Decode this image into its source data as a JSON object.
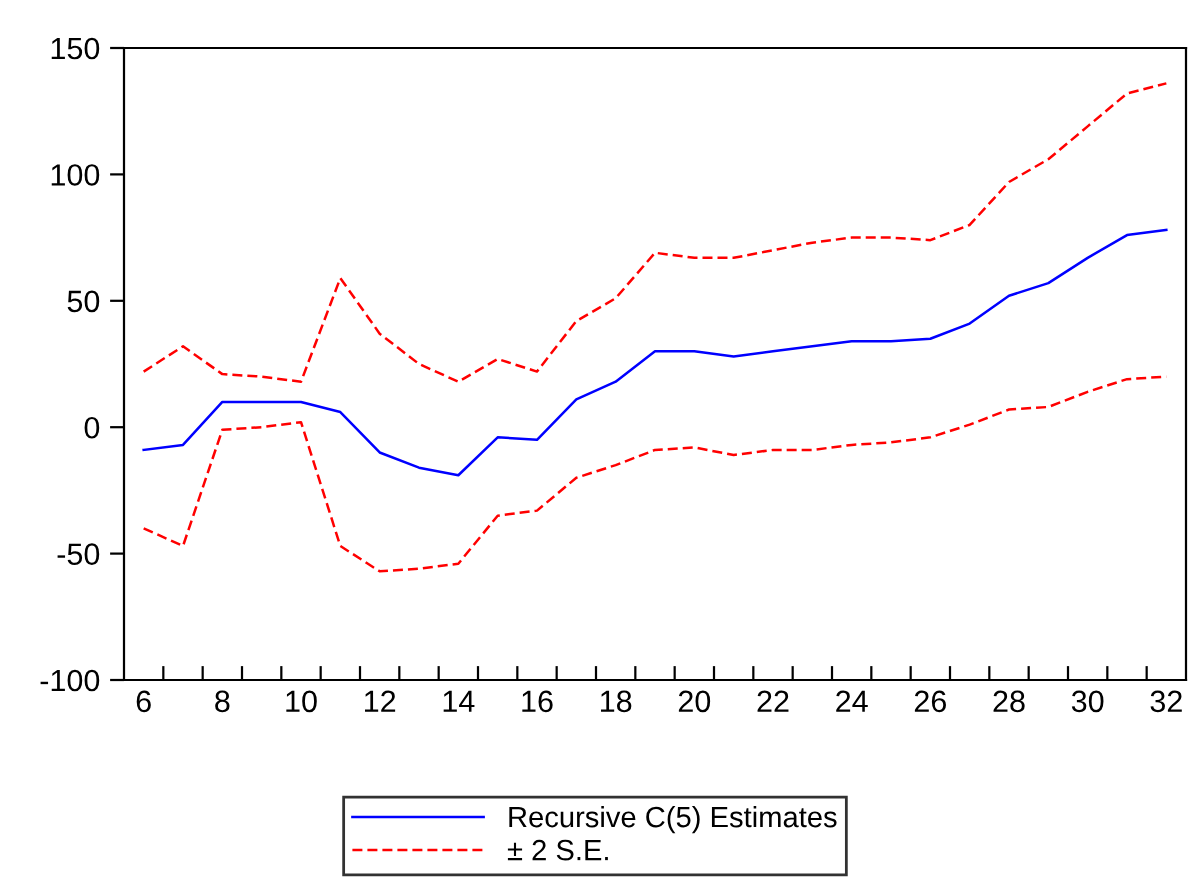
{
  "chart_data": {
    "type": "line",
    "categories": [
      "6",
      null,
      "8",
      null,
      "10",
      null,
      "12",
      null,
      "14",
      null,
      "16",
      null,
      "18",
      null,
      "20",
      null,
      "22",
      null,
      "24",
      null,
      "26",
      null,
      "28",
      null,
      "30",
      null,
      "32"
    ],
    "series": [
      {
        "name": "Recursive C(5) Estimates",
        "color": "#0000ff",
        "line_style": "solid",
        "values": [
          -9,
          -7,
          10,
          10,
          10,
          6,
          -10,
          -16,
          -19,
          -4,
          -5,
          11,
          18,
          30,
          30,
          28,
          30,
          32,
          34,
          34,
          35,
          41,
          52,
          57,
          67,
          76,
          78
        ]
      },
      {
        "name": "± 2 S.E.",
        "color": "#ff0000",
        "line_style": "dashed",
        "values": [
          22,
          32,
          21,
          20,
          18,
          59,
          37,
          25,
          18,
          27,
          22,
          42,
          51,
          69,
          67,
          67,
          70,
          73,
          75,
          75,
          74,
          80,
          97,
          106,
          119,
          132,
          136
        ]
      },
      {
        "color": "#ff0000",
        "line_style": "dashed",
        "values": [
          -40,
          -47,
          -1,
          0,
          2,
          -47,
          -57,
          -56,
          -54,
          -35,
          -33,
          -20,
          -15,
          -9,
          -8,
          -11,
          -9,
          -9,
          -7,
          -6,
          -4,
          1,
          7,
          8,
          14,
          19,
          20
        ]
      }
    ],
    "ylim": [
      -100,
      150
    ],
    "yticks": [
      -100,
      -50,
      0,
      50,
      100,
      150
    ],
    "grid": false,
    "legend": "bottom",
    "marker": "none"
  }
}
